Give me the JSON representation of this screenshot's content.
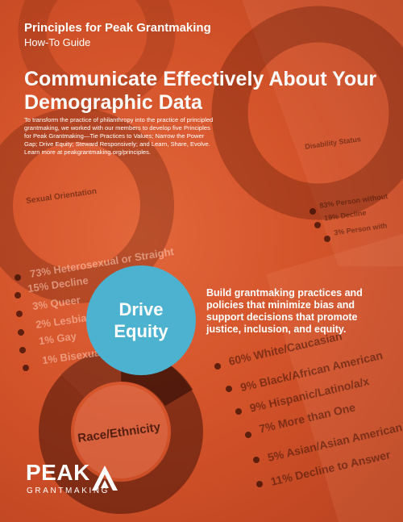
{
  "header": {
    "series": "Principles for Peak Grantmaking",
    "subtitle": "How-To Guide"
  },
  "title": "Communicate Effectively About Your Demographic Data",
  "intro": "To transform the practice of philanthropy into the practice of principled grantmaking, we worked with our members to develop five Principles for Peak Grantmaking—Tie Practices to Values; Narrow the Power Gap; Drive Equity; Steward Responsively; and Learn, Share, Evolve. Learn more at peakgrantmaking.org/principles.",
  "principle": {
    "label": "Drive Equity",
    "tagline": "Build grantmaking practices and policies that minimize bias and support decisions that promote justice, inclusion, and equity."
  },
  "background_data": {
    "sexual_orientation": {
      "title": "Sexual Orientation",
      "items": [
        "73% Heterosexual or Straight",
        "15% Decline",
        "3% Queer",
        "2% Lesbian",
        "1% Gay",
        "1% Bisexual"
      ]
    },
    "race_ethnicity": {
      "title": "Race/Ethnicity",
      "items": [
        "60% White/Caucasian",
        "9% Black/African American",
        "9% Hispanic/Latino/a/x",
        "7% More than One",
        "5% Asian/Asian American",
        "11% Decline to Answer"
      ]
    },
    "disability": {
      "title": "Disability Status",
      "items": [
        "83% Person without",
        "19% Decline",
        "3% Person with"
      ]
    }
  },
  "logo": {
    "wordmark": "PEAK",
    "subtext": "GRANTMAKING"
  },
  "colors": {
    "background": "#d9562c",
    "circle": "#4db2cf",
    "text": "#ffffff"
  }
}
